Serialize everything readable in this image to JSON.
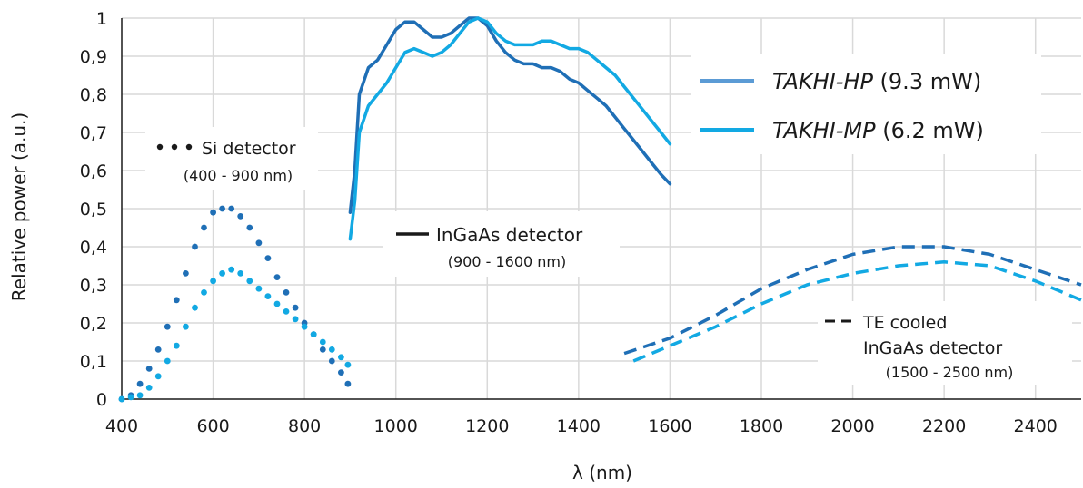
{
  "chart_data": {
    "type": "line",
    "title": "",
    "xlabel": "λ (nm)",
    "ylabel": "Relative power (a.u.)",
    "xlim": [
      400,
      2500
    ],
    "ylim": [
      0,
      1
    ],
    "x_ticks": [
      400,
      600,
      800,
      1000,
      1200,
      1400,
      1600,
      1800,
      2000,
      2200,
      2400
    ],
    "x_tick_labels": [
      "400",
      "600",
      "800",
      "1000",
      "1200",
      "1400",
      "1600",
      "1800",
      "2000",
      "2200",
      "2400"
    ],
    "y_ticks": [
      0,
      0.1,
      0.2,
      0.3,
      0.4,
      0.5,
      0.6,
      0.7,
      0.8,
      0.9,
      1
    ],
    "y_tick_labels": [
      "0",
      "0,1",
      "0,2",
      "0,3",
      "0,4",
      "0,5",
      "0,6",
      "0,7",
      "0,8",
      "0,9",
      "1"
    ],
    "grid": true,
    "legend_position": "top-right",
    "legend": [
      {
        "name_italic": "TAKHI-HP",
        "suffix": " (9.3 mW)",
        "color": "#5b9bd5"
      },
      {
        "name_italic": "TAKHI-MP",
        "suffix": " (6.2 mW)",
        "color": "#12a9e3"
      }
    ],
    "series": [
      {
        "key": "hp_si",
        "color": "#1f6fb6",
        "style": "dotted",
        "x": [
          400,
          420,
          440,
          460,
          480,
          500,
          520,
          540,
          560,
          580,
          600,
          620,
          640,
          660,
          680,
          700,
          720,
          740,
          760,
          780,
          800,
          820,
          840,
          860,
          880,
          895
        ],
        "y": [
          0,
          0.01,
          0.04,
          0.08,
          0.13,
          0.19,
          0.26,
          0.33,
          0.4,
          0.45,
          0.49,
          0.5,
          0.5,
          0.48,
          0.45,
          0.41,
          0.37,
          0.32,
          0.28,
          0.24,
          0.2,
          0.17,
          0.13,
          0.1,
          0.07,
          0.04
        ]
      },
      {
        "key": "mp_si",
        "color": "#12a9e3",
        "style": "dotted",
        "x": [
          400,
          420,
          440,
          460,
          480,
          500,
          520,
          540,
          560,
          580,
          600,
          620,
          640,
          660,
          680,
          700,
          720,
          740,
          760,
          780,
          800,
          820,
          840,
          860,
          880,
          895
        ],
        "y": [
          0,
          0.005,
          0.01,
          0.03,
          0.06,
          0.1,
          0.14,
          0.19,
          0.24,
          0.28,
          0.31,
          0.33,
          0.34,
          0.33,
          0.31,
          0.29,
          0.27,
          0.25,
          0.23,
          0.21,
          0.19,
          0.17,
          0.15,
          0.13,
          0.11,
          0.09
        ]
      },
      {
        "key": "hp_ingaas",
        "color": "#1f6fb6",
        "style": "solid",
        "x": [
          900,
          910,
          920,
          940,
          960,
          980,
          1000,
          1020,
          1040,
          1060,
          1080,
          1100,
          1120,
          1140,
          1160,
          1180,
          1200,
          1220,
          1240,
          1260,
          1280,
          1300,
          1320,
          1340,
          1360,
          1380,
          1400,
          1420,
          1440,
          1460,
          1480,
          1500,
          1520,
          1540,
          1560,
          1580,
          1600
        ],
        "y": [
          0.49,
          0.6,
          0.8,
          0.87,
          0.89,
          0.93,
          0.97,
          0.99,
          0.99,
          0.97,
          0.95,
          0.95,
          0.96,
          0.98,
          1.0,
          1.0,
          0.98,
          0.94,
          0.91,
          0.89,
          0.88,
          0.88,
          0.87,
          0.87,
          0.86,
          0.84,
          0.83,
          0.81,
          0.79,
          0.77,
          0.74,
          0.71,
          0.68,
          0.65,
          0.62,
          0.59,
          0.565
        ]
      },
      {
        "key": "mp_ingaas",
        "color": "#12a9e3",
        "style": "solid",
        "x": [
          900,
          910,
          920,
          940,
          960,
          980,
          1000,
          1020,
          1040,
          1060,
          1080,
          1100,
          1120,
          1140,
          1160,
          1180,
          1200,
          1220,
          1240,
          1260,
          1280,
          1300,
          1320,
          1340,
          1360,
          1380,
          1400,
          1420,
          1440,
          1460,
          1480,
          1500,
          1520,
          1540,
          1560,
          1580,
          1600
        ],
        "y": [
          0.42,
          0.52,
          0.7,
          0.77,
          0.8,
          0.83,
          0.87,
          0.91,
          0.92,
          0.91,
          0.9,
          0.91,
          0.93,
          0.96,
          0.99,
          1.0,
          0.99,
          0.96,
          0.94,
          0.93,
          0.93,
          0.93,
          0.94,
          0.94,
          0.93,
          0.92,
          0.92,
          0.91,
          0.89,
          0.87,
          0.85,
          0.82,
          0.79,
          0.76,
          0.73,
          0.7,
          0.67
        ]
      },
      {
        "key": "hp_te",
        "color": "#1f6fb6",
        "style": "dashed",
        "x": [
          1500,
          1600,
          1700,
          1800,
          1900,
          2000,
          2100,
          2200,
          2300,
          2400,
          2500
        ],
        "y": [
          0.12,
          0.16,
          0.22,
          0.29,
          0.34,
          0.38,
          0.4,
          0.4,
          0.38,
          0.34,
          0.3
        ]
      },
      {
        "key": "mp_te",
        "color": "#12a9e3",
        "style": "dashed",
        "x": [
          1520,
          1600,
          1700,
          1800,
          1900,
          2000,
          2100,
          2200,
          2300,
          2400,
          2500
        ],
        "y": [
          0.1,
          0.14,
          0.19,
          0.25,
          0.3,
          0.33,
          0.35,
          0.36,
          0.35,
          0.31,
          0.26
        ]
      }
    ],
    "annotations": {
      "si": {
        "line1": "Si detector",
        "line2": "(400 - 900 nm)"
      },
      "ingaas": {
        "line1": "InGaAs detector",
        "line2": "(900 - 1600 nm)"
      },
      "te": {
        "line1": "TE cooled",
        "line2": "InGaAs detector",
        "line3": "(1500 - 2500 nm)"
      }
    }
  }
}
